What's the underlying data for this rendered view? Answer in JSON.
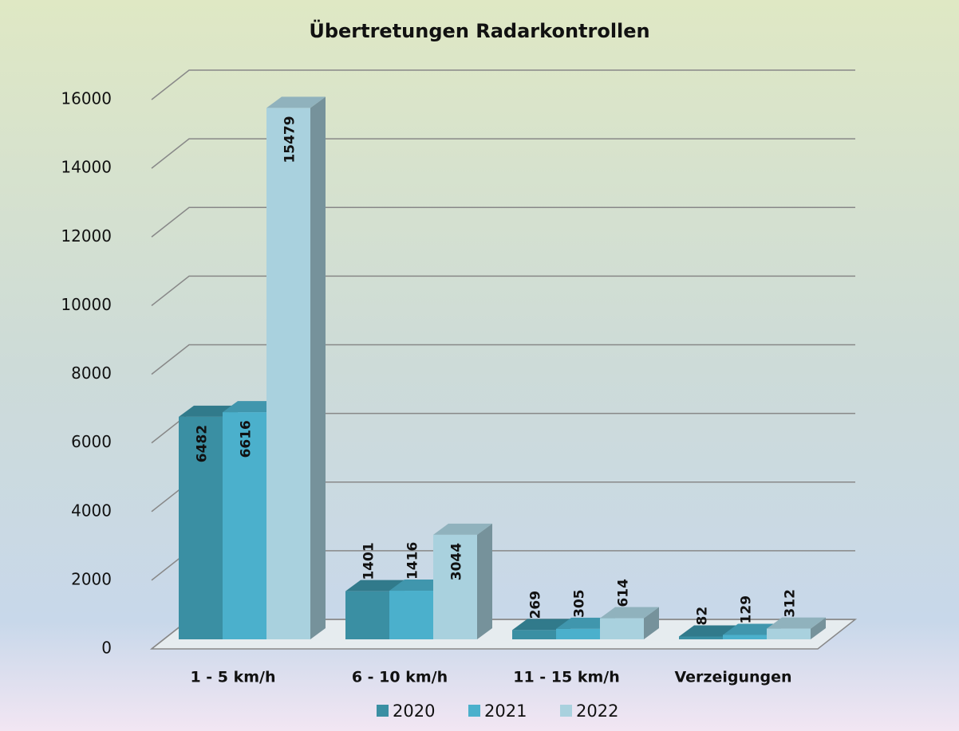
{
  "chart_data": {
    "type": "bar3d",
    "title": "Übertretungen Radarkontrollen",
    "categories": [
      "1 - 5 km/h",
      "6 - 10 km/h",
      "11 - 15 km/h",
      "Verzeigungen"
    ],
    "series": [
      {
        "name": "2020",
        "color": "#3a8fa3",
        "values": [
          6482,
          1401,
          269,
          82
        ]
      },
      {
        "name": "2021",
        "color": "#4bb0cc",
        "values": [
          6616,
          1416,
          305,
          129
        ]
      },
      {
        "name": "2022",
        "color": "#a9d1de",
        "values": [
          15479,
          3044,
          614,
          312
        ]
      }
    ],
    "ylim": [
      0,
      16000
    ],
    "yticks": [
      0,
      2000,
      4000,
      6000,
      8000,
      10000,
      12000,
      14000,
      16000
    ],
    "grid": true,
    "legend": "bottom"
  }
}
